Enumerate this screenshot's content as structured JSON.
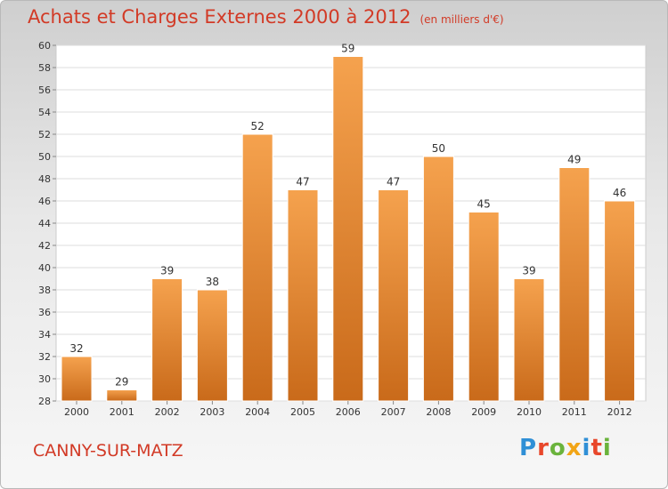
{
  "chart_data": {
    "type": "bar",
    "title": "Achats et Charges Externes 2000 à 2012",
    "subtitle": "(en milliers d'€)",
    "categories": [
      "2000",
      "2001",
      "2002",
      "2003",
      "2004",
      "2005",
      "2006",
      "2007",
      "2008",
      "2009",
      "2010",
      "2011",
      "2012"
    ],
    "values": [
      32,
      29,
      39,
      38,
      52,
      47,
      59,
      47,
      50,
      45,
      39,
      49,
      46
    ],
    "ylim": [
      28,
      60
    ],
    "yticks": [
      28,
      30,
      32,
      34,
      36,
      38,
      40,
      42,
      44,
      46,
      48,
      50,
      52,
      54,
      56,
      58,
      60
    ],
    "grid": true,
    "bar_color": "#f0963a",
    "bar_color_dark": "#c96a1a"
  },
  "footer": {
    "location": "CANNY-SUR-MATZ",
    "logo": "Proxiti",
    "logo_colors": [
      "#2f8fd6",
      "#e8472b",
      "#6ab33c",
      "#f2a516",
      "#2f8fd6",
      "#e8472b",
      "#6ab33c"
    ]
  }
}
